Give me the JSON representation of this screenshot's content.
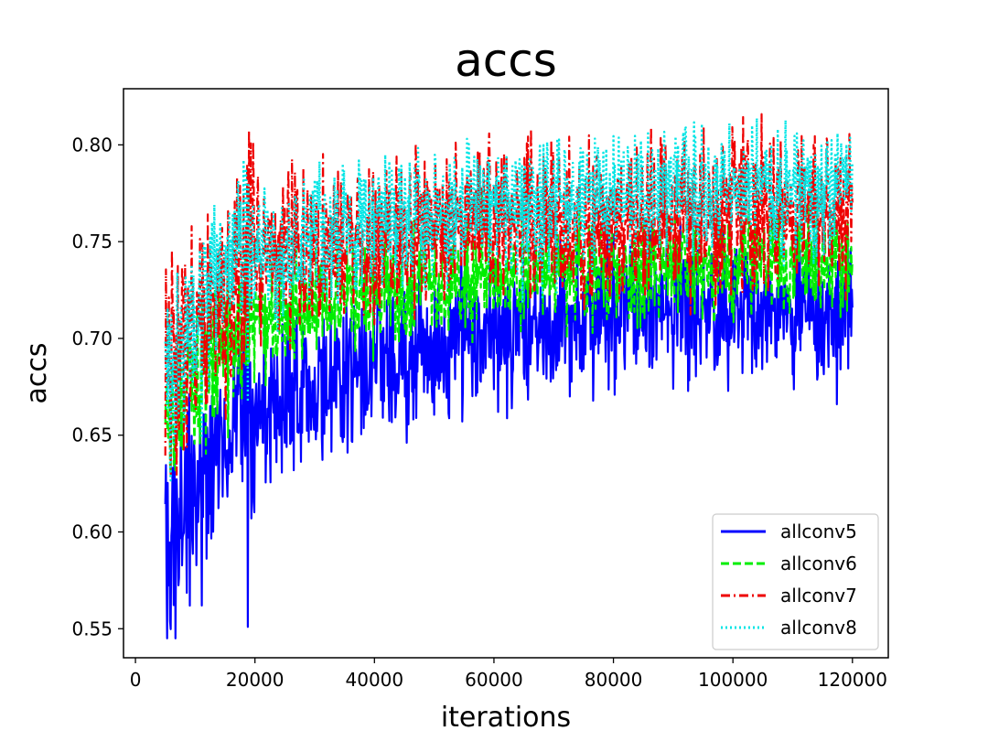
{
  "chart_data": {
    "type": "line",
    "title": "accs",
    "xlabel": "iterations",
    "ylabel": "accs",
    "xlim": [
      -2000,
      126000
    ],
    "ylim": [
      0.535,
      0.829
    ],
    "xticks": [
      0,
      20000,
      40000,
      60000,
      80000,
      100000,
      120000
    ],
    "yticks": [
      0.55,
      0.6,
      0.65,
      0.7,
      0.75,
      0.8
    ],
    "xtick_labels": [
      "0",
      "20000",
      "40000",
      "60000",
      "80000",
      "100000",
      "120000"
    ],
    "ytick_labels": [
      "0.55",
      "0.60",
      "0.65",
      "0.70",
      "0.75",
      "0.80"
    ],
    "grid": false,
    "legend_position": "lower-right",
    "x_range": [
      5000,
      120000
    ],
    "series": [
      {
        "name": "allconv5",
        "color": "#0000ff",
        "dash": "solid",
        "trend_x": [
          5000,
          10000,
          20000,
          40000,
          60000,
          80000,
          100000,
          120000
        ],
        "trend_y": [
          0.585,
          0.625,
          0.665,
          0.685,
          0.703,
          0.712,
          0.714,
          0.716
        ],
        "noise": 0.018
      },
      {
        "name": "allconv6",
        "color": "#00ee00",
        "dash": "dashed",
        "trend_x": [
          5000,
          10000,
          20000,
          40000,
          60000,
          80000,
          100000,
          120000
        ],
        "trend_y": [
          0.66,
          0.685,
          0.71,
          0.722,
          0.73,
          0.735,
          0.738,
          0.742
        ],
        "noise": 0.013
      },
      {
        "name": "allconv7",
        "color": "#ee0000",
        "dash": "dashdot",
        "trend_x": [
          5000,
          10000,
          20000,
          40000,
          60000,
          80000,
          100000,
          120000
        ],
        "trend_y": [
          0.685,
          0.7,
          0.74,
          0.752,
          0.758,
          0.762,
          0.765,
          0.768
        ],
        "noise": 0.02
      },
      {
        "name": "allconv8",
        "color": "#00e5e5",
        "dash": "dotted",
        "trend_x": [
          5000,
          10000,
          20000,
          40000,
          60000,
          80000,
          100000,
          120000
        ],
        "trend_y": [
          0.67,
          0.715,
          0.745,
          0.76,
          0.768,
          0.774,
          0.778,
          0.782
        ],
        "noise": 0.016
      }
    ]
  }
}
